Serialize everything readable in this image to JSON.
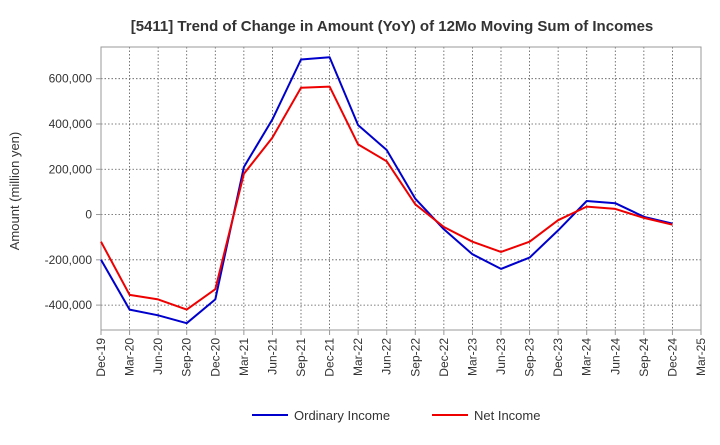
{
  "chart_data": {
    "type": "line",
    "title": "[5411]  Trend of Change in Amount (YoY) of 12Mo Moving Sum of Incomes",
    "xlabel": "",
    "ylabel": "Amount (million yen)",
    "categories": [
      "Dec-19",
      "Mar-20",
      "Jun-20",
      "Sep-20",
      "Dec-20",
      "Mar-21",
      "Jun-21",
      "Sep-21",
      "Dec-21",
      "Mar-22",
      "Jun-22",
      "Sep-22",
      "Dec-22",
      "Mar-23",
      "Jun-23",
      "Sep-23",
      "Dec-23",
      "Mar-24",
      "Jun-24",
      "Sep-24",
      "Dec-24",
      "Mar-25"
    ],
    "ylim": [
      -510000,
      740000
    ],
    "yticks": [
      -400000,
      -200000,
      0,
      200000,
      400000,
      600000
    ],
    "ytick_labels": [
      "-400,000",
      "-200,000",
      "0",
      "200,000",
      "400,000",
      "600,000"
    ],
    "grid": true,
    "legend_position": "bottom",
    "series": [
      {
        "name": "Ordinary Income",
        "color": "#0000cc",
        "values": [
          -200000,
          -420000,
          -445000,
          -480000,
          -375000,
          210000,
          420000,
          685000,
          695000,
          395000,
          285000,
          70000,
          -65000,
          -175000,
          -240000,
          -190000,
          -70000,
          60000,
          50000,
          -10000,
          -40000,
          null
        ]
      },
      {
        "name": "Net Income",
        "color": "#ee0000",
        "values": [
          -120000,
          -355000,
          -375000,
          -420000,
          -330000,
          180000,
          340000,
          560000,
          565000,
          310000,
          235000,
          45000,
          -55000,
          -120000,
          -165000,
          -120000,
          -25000,
          35000,
          25000,
          -15000,
          -45000,
          null
        ]
      }
    ]
  }
}
